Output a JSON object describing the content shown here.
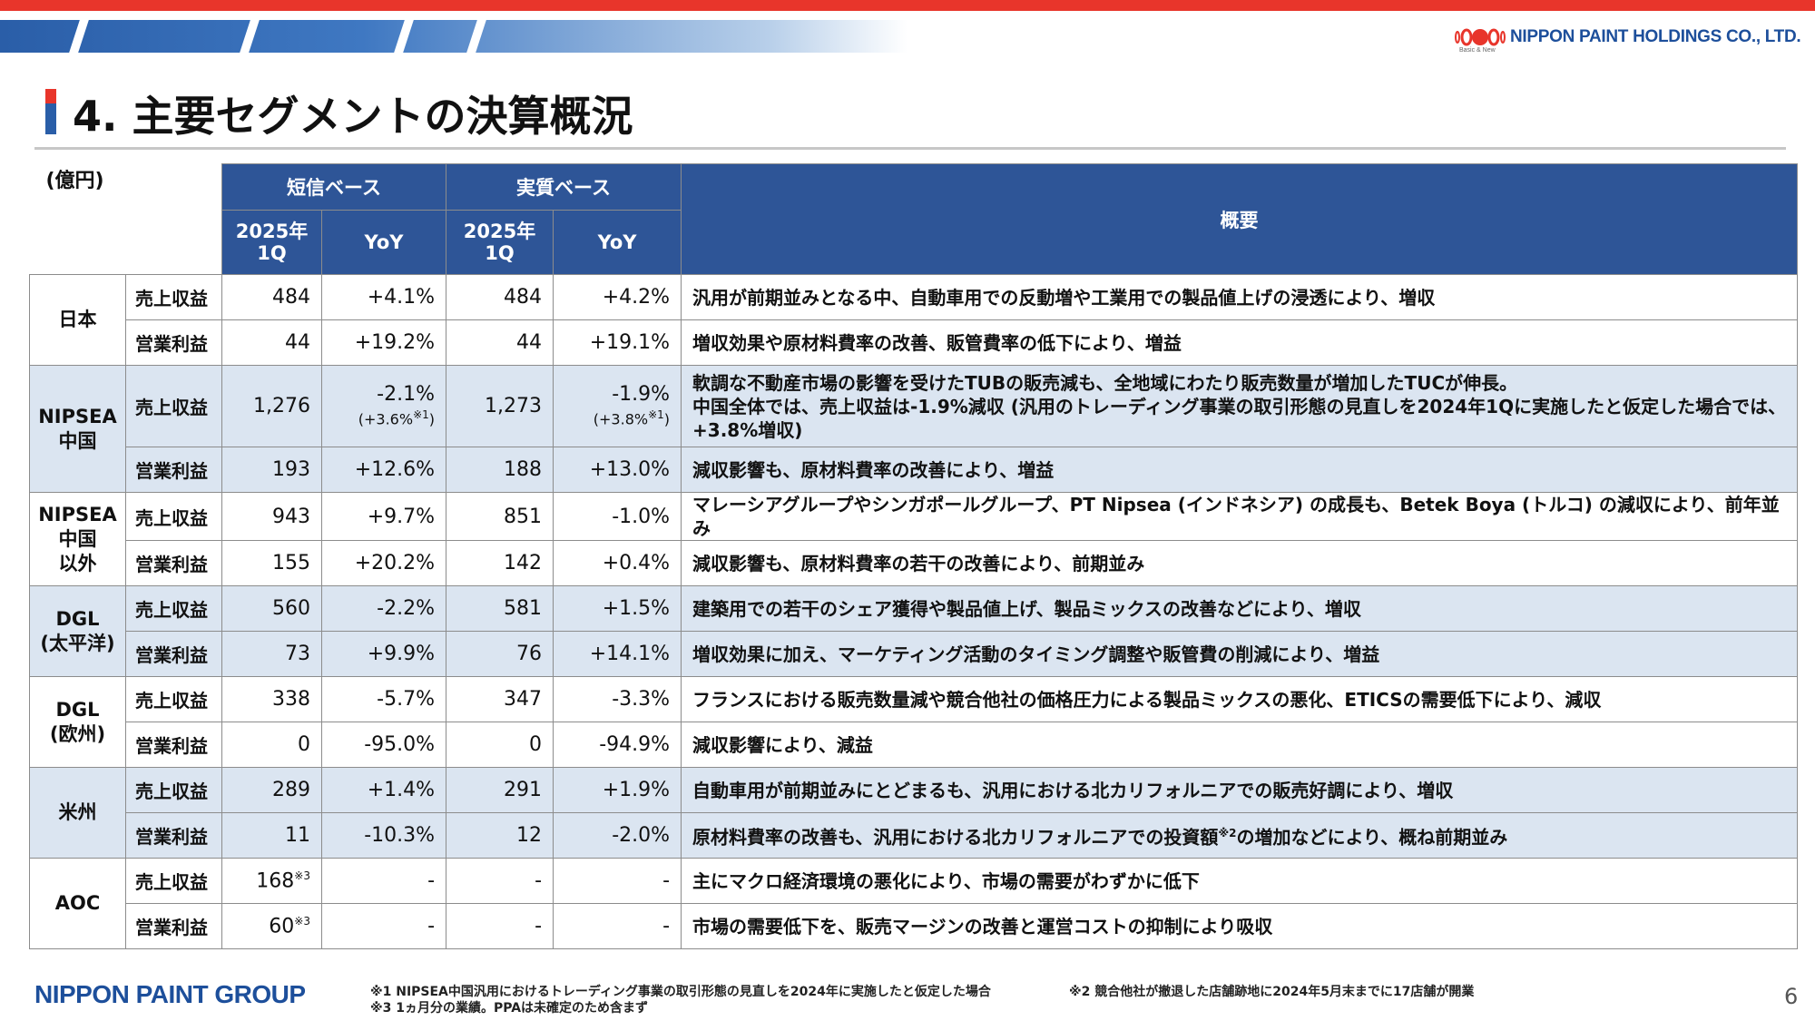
{
  "header": {
    "company": "NIPPON PAINT HOLDINGS CO., LTD.",
    "company_sub": "Basic & New",
    "title": "4. 主要セグメントの決算概況",
    "unit": "(億円)"
  },
  "colors": {
    "header_bg": "#2e5597",
    "shade_row": "#dbe5f1",
    "brand_red": "#e8352b",
    "brand_blue": "#1d4f9b"
  },
  "table": {
    "group_headers": [
      "短信ベース",
      "実質ベース"
    ],
    "sub_headers": {
      "period": "2025年\n1Q",
      "yoy": "YoY"
    },
    "summary_header": "概要",
    "segments": [
      {
        "name": "日本",
        "shaded": false,
        "rows": [
          {
            "item": "売上収益",
            "tanshin": "484",
            "tanshin_yoy": "+4.1%",
            "tanshin_note": "",
            "jisshitsu": "484",
            "jisshitsu_yoy": "+4.2%",
            "jisshitsu_note": "",
            "summary": "汎用が前期並みとなる中、自動車用での反動増や工業用での製品値上げの浸透により、増収"
          },
          {
            "item": "営業利益",
            "tanshin": "44",
            "tanshin_yoy": "+19.2%",
            "tanshin_note": "",
            "jisshitsu": "44",
            "jisshitsu_yoy": "+19.1%",
            "jisshitsu_note": "",
            "summary": "増収効果や原材料費率の改善、販管費率の低下により、増益"
          }
        ]
      },
      {
        "name": "NIPSEA\n中国",
        "shaded": true,
        "rows": [
          {
            "item": "売上収益",
            "tanshin": "1,276",
            "tanshin_yoy": "-2.1%",
            "tanshin_note": "(+3.6%※1)",
            "jisshitsu": "1,273",
            "jisshitsu_yoy": "-1.9%",
            "jisshitsu_note": "(+3.8%※1)",
            "summary": "軟調な不動産市場の影響を受けたTUBの販売減も、全地域にわたり販売数量が増加したTUCが伸長。\n中国全体では、売上収益は-1.9%減収 (汎用のトレーディング事業の取引形態の見直しを2024年1Qに実施したと仮定した場合では、+3.8%増収)"
          },
          {
            "item": "営業利益",
            "tanshin": "193",
            "tanshin_yoy": "+12.6%",
            "tanshin_note": "",
            "jisshitsu": "188",
            "jisshitsu_yoy": "+13.0%",
            "jisshitsu_note": "",
            "summary": "減収影響も、原材料費率の改善により、増益"
          }
        ]
      },
      {
        "name": "NIPSEA\n中国\n以外",
        "shaded": false,
        "rows": [
          {
            "item": "売上収益",
            "tanshin": "943",
            "tanshin_yoy": "+9.7%",
            "tanshin_note": "",
            "jisshitsu": "851",
            "jisshitsu_yoy": "-1.0%",
            "jisshitsu_note": "",
            "summary": "マレーシアグループやシンガポールグループ、PT Nipsea (インドネシア) の成長も、Betek Boya (トルコ) の減収により、前年並み"
          },
          {
            "item": "営業利益",
            "tanshin": "155",
            "tanshin_yoy": "+20.2%",
            "tanshin_note": "",
            "jisshitsu": "142",
            "jisshitsu_yoy": "+0.4%",
            "jisshitsu_note": "",
            "summary": "減収影響も、原材料費率の若干の改善により、前期並み"
          }
        ]
      },
      {
        "name": "DGL\n(太平洋)",
        "shaded": true,
        "rows": [
          {
            "item": "売上収益",
            "tanshin": "560",
            "tanshin_yoy": "-2.2%",
            "tanshin_note": "",
            "jisshitsu": "581",
            "jisshitsu_yoy": "+1.5%",
            "jisshitsu_note": "",
            "summary": "建築用での若干のシェア獲得や製品値上げ、製品ミックスの改善などにより、増収"
          },
          {
            "item": "営業利益",
            "tanshin": "73",
            "tanshin_yoy": "+9.9%",
            "tanshin_note": "",
            "jisshitsu": "76",
            "jisshitsu_yoy": "+14.1%",
            "jisshitsu_note": "",
            "summary": "増収効果に加え、マーケティング活動のタイミング調整や販管費の削減により、増益"
          }
        ]
      },
      {
        "name": "DGL\n(欧州)",
        "shaded": false,
        "rows": [
          {
            "item": "売上収益",
            "tanshin": "338",
            "tanshin_yoy": "-5.7%",
            "tanshin_note": "",
            "jisshitsu": "347",
            "jisshitsu_yoy": "-3.3%",
            "jisshitsu_note": "",
            "summary": "フランスにおける販売数量減や競合他社の価格圧力による製品ミックスの悪化、ETICSの需要低下により、減収"
          },
          {
            "item": "営業利益",
            "tanshin": "0",
            "tanshin_yoy": "-95.0%",
            "tanshin_note": "",
            "jisshitsu": "0",
            "jisshitsu_yoy": "-94.9%",
            "jisshitsu_note": "",
            "summary": "減収影響により、減益"
          }
        ]
      },
      {
        "name": "米州",
        "shaded": true,
        "rows": [
          {
            "item": "売上収益",
            "tanshin": "289",
            "tanshin_yoy": "+1.4%",
            "tanshin_note": "",
            "jisshitsu": "291",
            "jisshitsu_yoy": "+1.9%",
            "jisshitsu_note": "",
            "summary": "自動車用が前期並みにとどまるも、汎用における北カリフォルニアでの販売好調により、増収"
          },
          {
            "item": "営業利益",
            "tanshin": "11",
            "tanshin_yoy": "-10.3%",
            "tanshin_note": "",
            "jisshitsu": "12",
            "jisshitsu_yoy": "-2.0%",
            "jisshitsu_note": "",
            "summary": "原材料費率の改善も、汎用における北カリフォルニアでの投資額※2の増加などにより、概ね前期並み"
          }
        ]
      },
      {
        "name": "AOC",
        "shaded": false,
        "rows": [
          {
            "item": "売上収益",
            "tanshin": "168※3",
            "tanshin_yoy": "-",
            "tanshin_note": "",
            "jisshitsu": "-",
            "jisshitsu_yoy": "-",
            "jisshitsu_note": "",
            "summary": "主にマクロ経済環境の悪化により、市場の需要がわずかに低下"
          },
          {
            "item": "営業利益",
            "tanshin": "60※3",
            "tanshin_yoy": "-",
            "tanshin_note": "",
            "jisshitsu": "-",
            "jisshitsu_yoy": "-",
            "jisshitsu_note": "",
            "summary": "市場の需要低下を、販売マージンの改善と運営コストの抑制により吸収"
          }
        ]
      }
    ]
  },
  "footer": {
    "brand": "NIPPON PAINT GROUP",
    "note1": "※1 NIPSEA中国汎用におけるトレーディング事業の取引形態の見直しを2024年に実施したと仮定した場合",
    "note2": "※2 競合他社が撤退した店舗跡地に2024年5月末までに17店舗が開業",
    "note3": "※3 1ヵ月分の業績。PPAは未確定のため含まず",
    "page": "6"
  }
}
